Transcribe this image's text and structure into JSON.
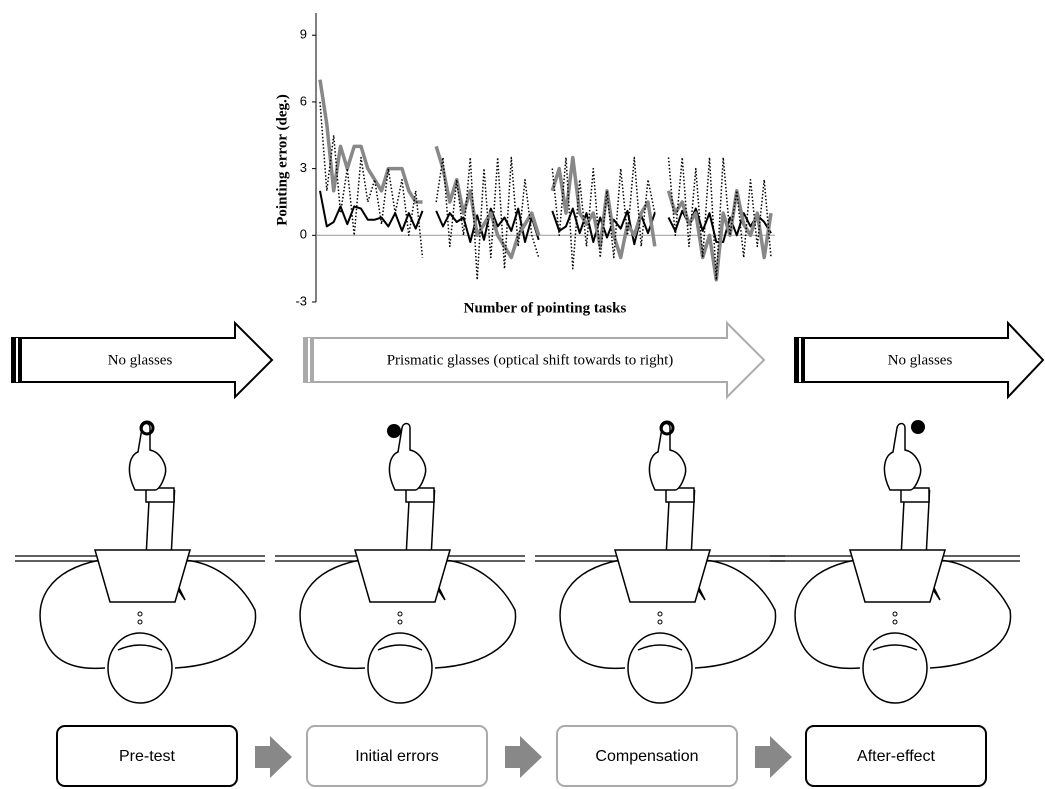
{
  "chart_data": {
    "type": "line",
    "ylabel": "Pointing error (deg.)",
    "xlabel": "Number of pointing tasks",
    "ylim": [
      -3,
      10
    ],
    "yticks": [
      -3,
      0,
      3,
      6,
      9
    ],
    "zero_line": true,
    "series": [
      {
        "color": "#000000",
        "width": 2,
        "dash": "solid",
        "values": [
          2,
          0.4,
          0.6,
          1.3,
          0.5,
          1.3,
          1.2,
          0.7,
          0.7,
          0.8,
          0.4,
          1.0,
          0.2,
          1.0,
          0.3,
          1.1,
          null,
          1.1,
          0.4,
          1.0,
          0.6,
          0.8,
          -0.3,
          0.9,
          -0.2,
          1.2,
          0.4,
          0.8,
          0.2,
          1.2,
          -0.3,
          0.8,
          -0.2,
          null,
          1.1,
          0.2,
          0.4,
          1.2,
          0.1,
          1.0,
          -0.3,
          0.8,
          -0.1,
          0.7,
          0.3,
          1.1,
          -0.4,
          0.9,
          0.1,
          1.0,
          null,
          0.8,
          0.2,
          1.1,
          0.5,
          1.2,
          0.2,
          1.0,
          -0.3,
          -0.3,
          0.8,
          0.0,
          1.0,
          0.4,
          0.9,
          0.6,
          0.1
        ]
      },
      {
        "color": "#888888",
        "width": 3.5,
        "dash": "solid",
        "values": [
          7,
          5,
          2,
          4,
          3,
          4,
          4,
          3,
          2.5,
          2,
          3,
          3,
          3,
          2,
          1.5,
          1.5,
          null,
          4,
          3,
          1.5,
          2.5,
          1,
          2,
          0,
          0.5,
          1,
          0,
          -0.5,
          -1,
          0,
          0.5,
          1,
          0,
          null,
          2,
          3,
          1,
          3.5,
          1,
          0.5,
          1,
          -0.5,
          2,
          0,
          -1,
          0.5,
          0,
          1,
          1.5,
          -0.5,
          null,
          2,
          1,
          1.5,
          0.5,
          1,
          -1,
          0,
          -2,
          1,
          0,
          2,
          0.5,
          0,
          1,
          -1,
          1
        ]
      },
      {
        "color": "#000000",
        "width": 1.5,
        "dash": "dotted",
        "values": [
          6,
          2,
          4.5,
          1,
          3,
          0,
          3.5,
          1.5,
          2.5,
          0.5,
          3,
          1,
          2.5,
          0,
          2,
          -1,
          null,
          1.5,
          3.5,
          -0.5,
          2.5,
          0,
          3.5,
          -2,
          3,
          -1,
          3.5,
          -1.5,
          3.5,
          -0.5,
          2.5,
          0,
          -1,
          null,
          3,
          0,
          3.5,
          -1.5,
          2.5,
          -0.5,
          3,
          -1,
          2,
          -1,
          3,
          0,
          3.5,
          -0.5,
          2.5,
          1,
          null,
          3.5,
          0,
          3.5,
          -0.5,
          3,
          -1,
          3.5,
          -2,
          3.5,
          0,
          2,
          -1,
          2.5,
          -0.5,
          2.5,
          -1
        ]
      }
    ]
  },
  "phases": [
    "No glasses",
    "Prismatic glasses (optical shift towards to right)",
    "No glasses"
  ],
  "stages": [
    "Pre-test",
    "Initial errors",
    "Compensation",
    "After-effect"
  ]
}
